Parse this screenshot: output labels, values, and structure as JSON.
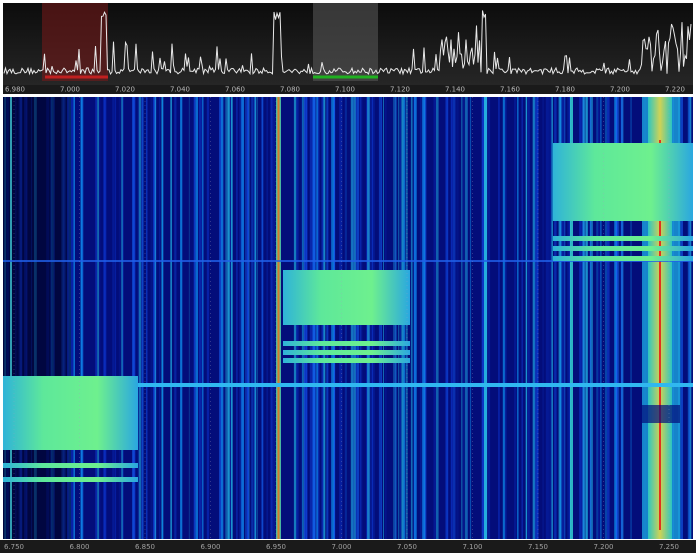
{
  "spectrum": {
    "axis_labels": [
      "6.980",
      "7.000",
      "7.020",
      "7.040",
      "7.060",
      "7.080",
      "7.100",
      "7.120",
      "7.140",
      "7.160",
      "7.180",
      "7.200",
      "7.220"
    ]
  },
  "waterfall": {
    "axis_labels": [
      "6.750",
      "6.800",
      "6.850",
      "6.900",
      "6.950",
      "7.000",
      "7.050",
      "7.100",
      "7.150",
      "7.200",
      "7.250"
    ]
  }
}
